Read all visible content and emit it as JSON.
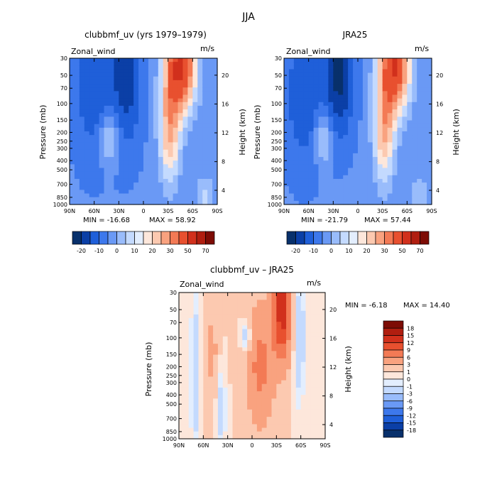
{
  "page_title": "JJA",
  "colors": {
    "neg": [
      "#08306b",
      "#0b3fa6",
      "#1f5fd9",
      "#3d78ec",
      "#6a99f5",
      "#99bcfb",
      "#c4dafe",
      "#e3eefe"
    ],
    "pos": [
      "#fde7db",
      "#fcc9b0",
      "#f9a27f",
      "#f37a55",
      "#e8502f",
      "#d1301c",
      "#b01e10",
      "#7d0c05"
    ]
  },
  "chart_data": [
    {
      "type": "contour",
      "title": "clubbmf_uv (yrs 1979–1979)",
      "variable": "Zonal_wind",
      "units": "m/s",
      "ylabel": "Pressure (mb)",
      "ylabel_right": "Height (km)",
      "x_ticks": [
        "90N",
        "60N",
        "30N",
        "0",
        "30S",
        "60S",
        "90S"
      ],
      "y_ticks": [
        "30",
        "50",
        "70",
        "100",
        "150",
        "200",
        "250",
        "300",
        "400",
        "500",
        "700",
        "850",
        "1000"
      ],
      "height_ticks": [
        "20",
        "16",
        "12",
        "8",
        "4"
      ],
      "min_label": "MIN = -16.68",
      "max_label": "MAX = 58.92",
      "levels": [
        "-20",
        "-10",
        "0",
        "10",
        "20",
        "30",
        "50",
        "70"
      ]
    },
    {
      "type": "contour",
      "title": "JRA25",
      "variable": "Zonal_wind",
      "units": "m/s",
      "ylabel": "Pressure (mb)",
      "ylabel_right": "Height (km)",
      "x_ticks": [
        "90N",
        "60N",
        "30N",
        "0",
        "30S",
        "60S",
        "90S"
      ],
      "y_ticks": [
        "30",
        "50",
        "70",
        "100",
        "150",
        "200",
        "250",
        "300",
        "400",
        "500",
        "700",
        "850",
        "1000"
      ],
      "height_ticks": [
        "20",
        "16",
        "12",
        "8",
        "4"
      ],
      "min_label": "MIN = -21.79",
      "max_label": "MAX = 57.44",
      "levels": [
        "-20",
        "-10",
        "0",
        "10",
        "20",
        "30",
        "50",
        "70"
      ]
    },
    {
      "type": "contour",
      "title": "clubbmf_uv – JRA25",
      "variable": "Zonal_wind",
      "units": "m/s",
      "ylabel": "Pressure (mb)",
      "ylabel_right": "Height (km)",
      "x_ticks": [
        "90N",
        "60N",
        "30N",
        "0",
        "30S",
        "60S",
        "90S"
      ],
      "y_ticks": [
        "30",
        "50",
        "70",
        "100",
        "150",
        "200",
        "250",
        "300",
        "400",
        "500",
        "700",
        "850",
        "1000"
      ],
      "height_ticks": [
        "20",
        "16",
        "12",
        "8",
        "4"
      ],
      "min_label": "MIN = -6.18",
      "max_label": "MAX = 14.40",
      "levels": [
        "18",
        "15",
        "12",
        "9",
        "6",
        "3",
        "1",
        "0",
        "-1",
        "-3",
        "-6",
        "-9",
        "-12",
        "-15",
        "-18"
      ]
    }
  ]
}
